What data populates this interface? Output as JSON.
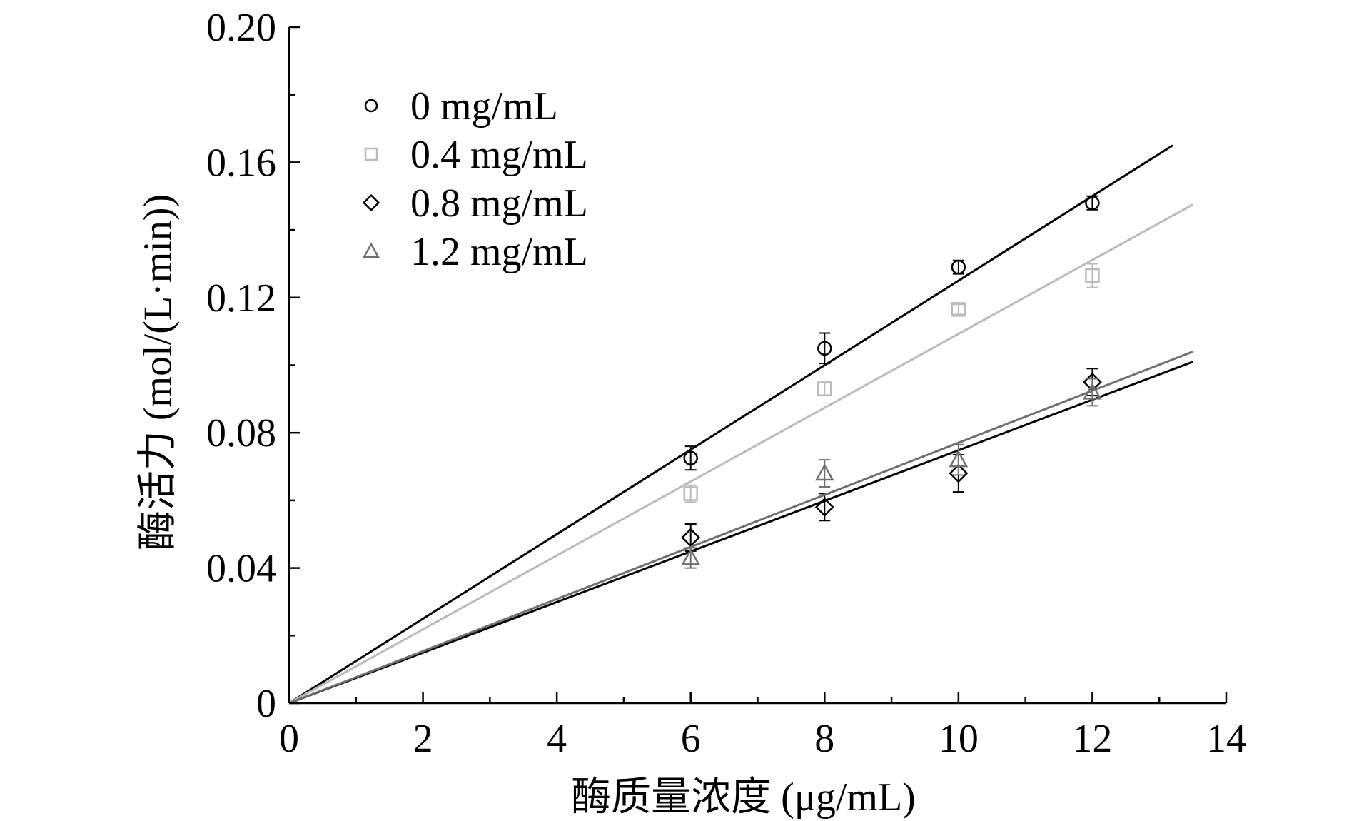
{
  "chart_data": {
    "type": "scatter",
    "title": "",
    "xlabel": "酶质量浓度 (μg/mL)",
    "ylabel": "酶活力 (mol/(L·min))",
    "xlim": [
      0,
      14
    ],
    "ylim": [
      0,
      0.2
    ],
    "x_ticks": [
      "0",
      "2",
      "4",
      "6",
      "8",
      "10",
      "12",
      "14"
    ],
    "y_ticks": [
      "0",
      "0.04",
      "0.08",
      "0.12",
      "0.16",
      "0.20"
    ],
    "x_tick_values": [
      0,
      2,
      4,
      6,
      8,
      10,
      12,
      14
    ],
    "y_tick_values": [
      0,
      0.04,
      0.08,
      0.12,
      0.16,
      0.2
    ],
    "grid": false,
    "legend_position": "top-left",
    "series": [
      {
        "name": "0 mg/mL",
        "marker": "circle",
        "color": "#000000",
        "points": [
          {
            "x": 6,
            "y": 0.0725,
            "err": 0.0035
          },
          {
            "x": 8,
            "y": 0.105,
            "err": 0.0045
          },
          {
            "x": 10,
            "y": 0.129,
            "err": 0.002
          },
          {
            "x": 12,
            "y": 0.148,
            "err": 0.002
          }
        ],
        "fit": {
          "x0": 0,
          "y0": 0,
          "x1": 13.2,
          "y1": 0.165
        }
      },
      {
        "name": "0.4 mg/mL",
        "marker": "square",
        "color": "#bbbbbb",
        "points": [
          {
            "x": 6,
            "y": 0.062,
            "err": 0.0025
          },
          {
            "x": 8,
            "y": 0.093,
            "err": 0.002
          },
          {
            "x": 10,
            "y": 0.1165,
            "err": 0.0015
          },
          {
            "x": 12,
            "y": 0.1265,
            "err": 0.0035
          }
        ],
        "fit": {
          "x0": 0,
          "y0": 0,
          "x1": 13.5,
          "y1": 0.1475
        }
      },
      {
        "name": "0.8 mg/mL",
        "marker": "diamond",
        "color": "#000000",
        "points": [
          {
            "x": 6,
            "y": 0.049,
            "err": 0.004
          },
          {
            "x": 8,
            "y": 0.058,
            "err": 0.004
          },
          {
            "x": 10,
            "y": 0.068,
            "err": 0.0055
          },
          {
            "x": 12,
            "y": 0.095,
            "err": 0.004
          }
        ],
        "fit": {
          "x0": 0,
          "y0": 0,
          "x1": 13.5,
          "y1": 0.101
        }
      },
      {
        "name": "1.2 mg/mL",
        "marker": "triangle",
        "color": "#707070",
        "points": [
          {
            "x": 6,
            "y": 0.043,
            "err": 0.003
          },
          {
            "x": 8,
            "y": 0.068,
            "err": 0.004
          },
          {
            "x": 10,
            "y": 0.072,
            "err": 0.0045
          },
          {
            "x": 12,
            "y": 0.092,
            "err": 0.004
          }
        ],
        "fit": {
          "x0": 0,
          "y0": 0,
          "x1": 13.5,
          "y1": 0.104
        }
      }
    ]
  }
}
